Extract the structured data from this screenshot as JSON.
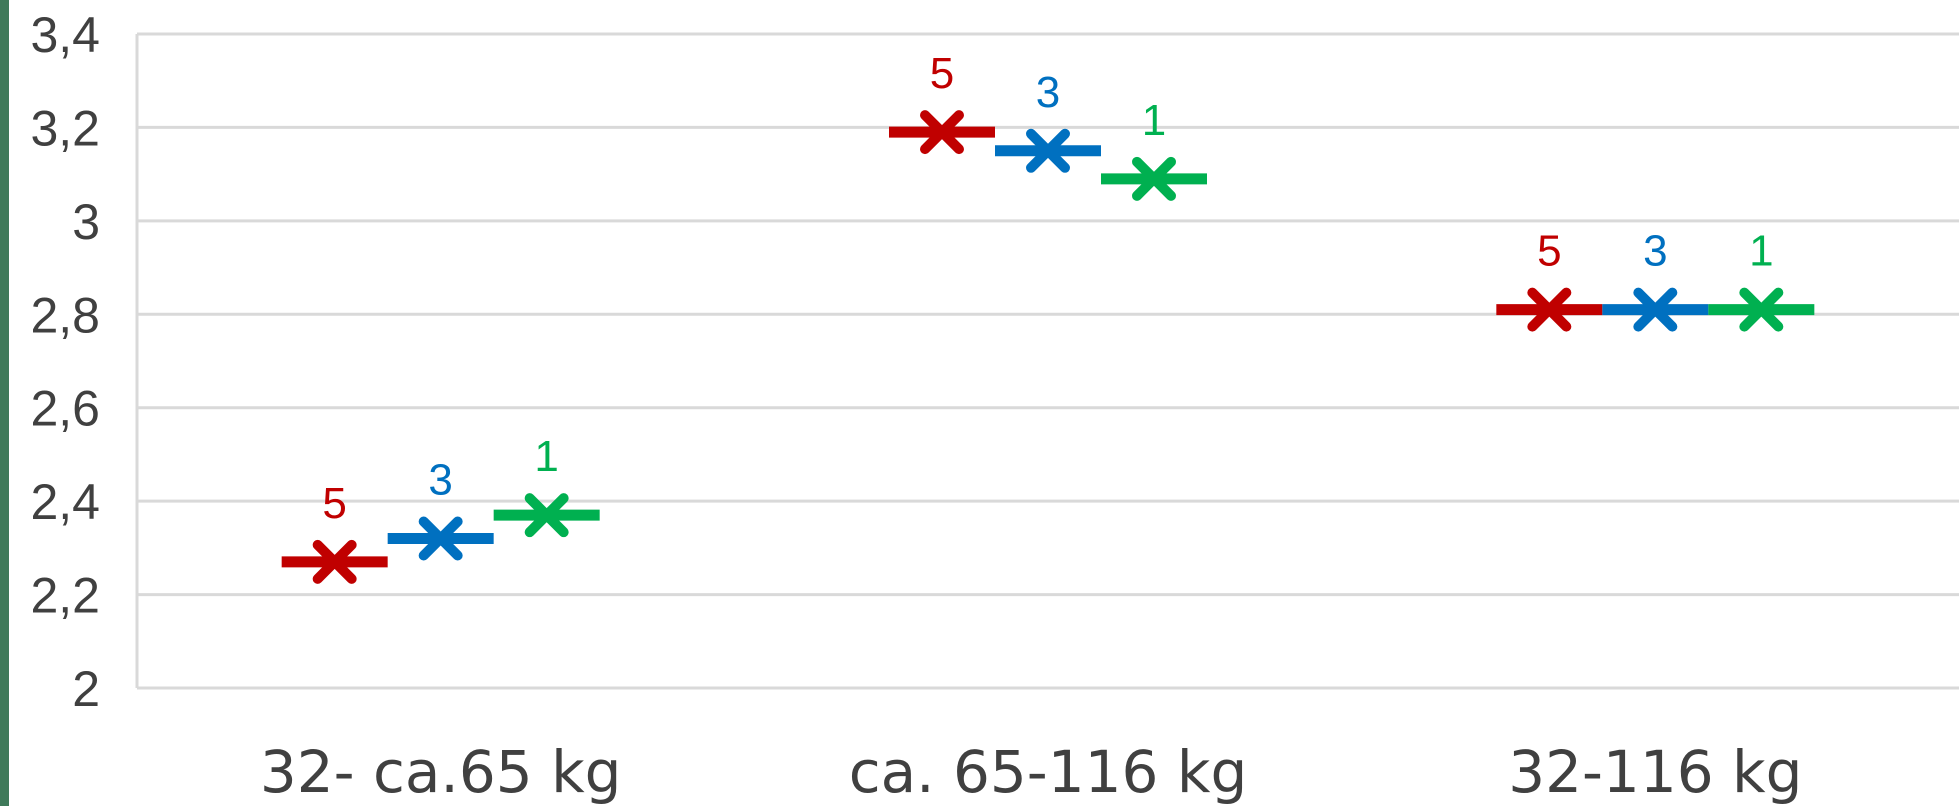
{
  "chart_data": {
    "type": "scatter",
    "categories": [
      "32- ca.65 kg",
      "ca. 65-116 kg",
      "32-116 kg"
    ],
    "yticks": [
      "2",
      "2,2",
      "2,4",
      "2,6",
      "2,8",
      "3",
      "3,2",
      "3,4"
    ],
    "ylim": [
      2,
      3.4
    ],
    "grid": true,
    "series": [
      {
        "label": "5",
        "color": "#c00000",
        "values": [
          2.27,
          3.19,
          2.81
        ]
      },
      {
        "label": "3",
        "color": "#0070c0",
        "values": [
          2.32,
          3.15,
          2.81
        ]
      },
      {
        "label": "1",
        "color": "#00b050",
        "values": [
          2.37,
          3.09,
          2.81
        ]
      }
    ]
  }
}
